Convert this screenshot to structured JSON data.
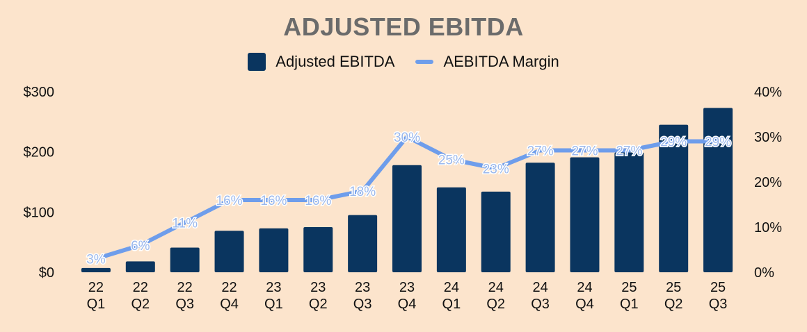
{
  "chart_data": {
    "type": "bar",
    "title": "ADJUSTED EBITDA",
    "categories": [
      [
        "22",
        "Q1"
      ],
      [
        "22",
        "Q2"
      ],
      [
        "22",
        "Q3"
      ],
      [
        "22",
        "Q4"
      ],
      [
        "23",
        "Q1"
      ],
      [
        "23",
        "Q2"
      ],
      [
        "23",
        "Q3"
      ],
      [
        "23",
        "Q4"
      ],
      [
        "24",
        "Q1"
      ],
      [
        "24",
        "Q2"
      ],
      [
        "24",
        "Q3"
      ],
      [
        "24",
        "Q4"
      ],
      [
        "25",
        "Q1"
      ],
      [
        "25",
        "Q2"
      ],
      [
        "25",
        "Q3"
      ]
    ],
    "series": [
      {
        "name": "Adjusted EBITDA",
        "type": "bar",
        "axis": "left",
        "color": "#0A355F",
        "values": [
          7,
          18,
          41,
          69,
          73,
          75,
          95,
          178,
          141,
          134,
          182,
          191,
          199,
          245,
          273
        ]
      },
      {
        "name": "AEBITDA Margin",
        "type": "line",
        "axis": "right",
        "color": "#6E9DEB",
        "values": [
          3,
          6,
          11,
          16,
          16,
          16,
          18,
          30,
          25,
          23,
          27,
          27,
          27,
          29,
          29
        ],
        "labels": [
          "3%",
          "6%",
          "11%",
          "16%",
          "16%",
          "16%",
          "18%",
          "30%",
          "25%",
          "23%",
          "27%",
          "27%",
          "27%",
          "29%",
          "29%"
        ]
      }
    ],
    "left_axis": {
      "ylim": [
        0,
        300
      ],
      "ticks": [
        0,
        100,
        200,
        300
      ],
      "tick_labels": [
        "$0",
        "$100",
        "$200",
        "$300"
      ]
    },
    "right_axis": {
      "ylim": [
        0,
        40
      ],
      "ticks": [
        0,
        10,
        20,
        30,
        40
      ],
      "tick_labels": [
        "0%",
        "10%",
        "20%",
        "30%",
        "40%"
      ]
    },
    "legend_position": "top-center",
    "grid": false
  }
}
